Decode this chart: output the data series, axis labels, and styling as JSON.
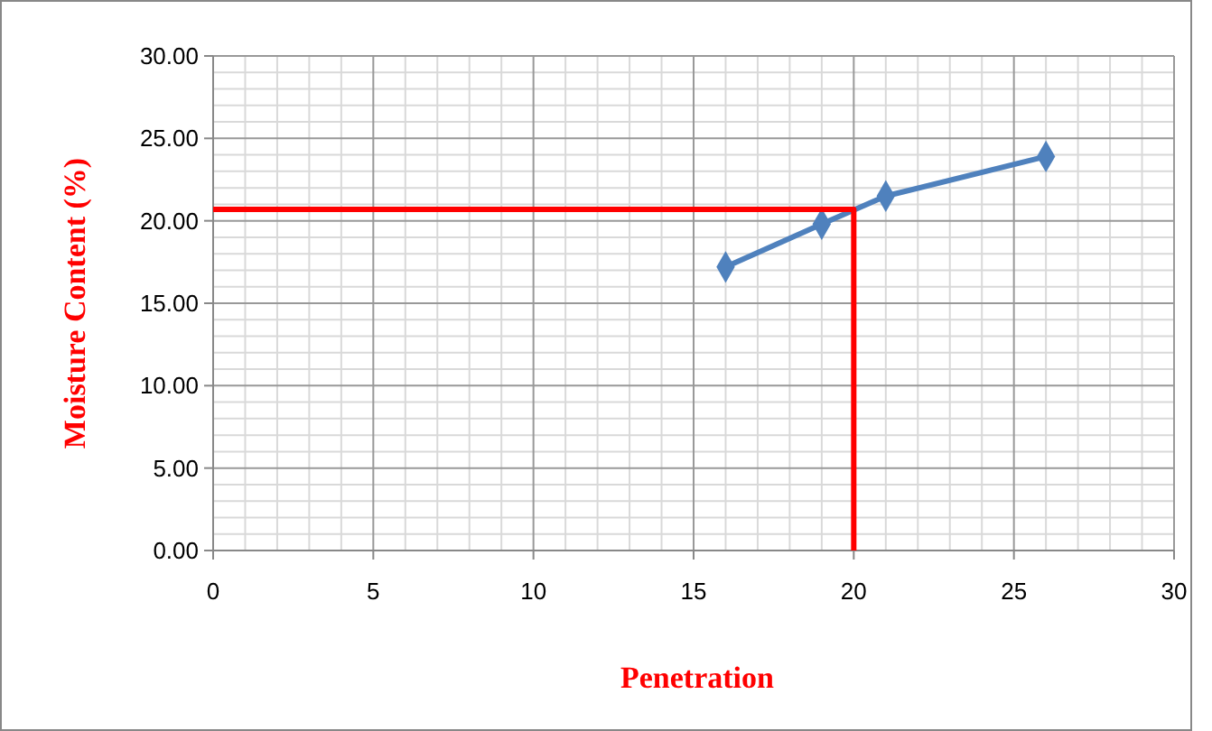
{
  "chart_data": {
    "type": "line",
    "xlabel": "Penetration",
    "ylabel": "Moisture Content (%)",
    "xlim": [
      0,
      30
    ],
    "xticks": [
      0,
      5,
      10,
      15,
      20,
      25,
      30
    ],
    "ylim": [
      0,
      30
    ],
    "yticks": [
      {
        "value": 0,
        "label": "0.00"
      },
      {
        "value": 5,
        "label": "5.00"
      },
      {
        "value": 10,
        "label": "10.00"
      },
      {
        "value": 15,
        "label": "15.00"
      },
      {
        "value": 20,
        "label": "20.00"
      },
      {
        "value": 25,
        "label": "25.00"
      },
      {
        "value": 30,
        "label": "30.00"
      }
    ],
    "grid": true,
    "series": [
      {
        "color": "#4f81bd",
        "x": [
          16,
          19,
          21,
          26
        ],
        "values": [
          17.2,
          19.8,
          21.5,
          23.9
        ],
        "marker": "diamond",
        "line_style": "solid"
      },
      {
        "color": "#ff0000",
        "x": [
          0,
          20,
          20
        ],
        "values": [
          20.7,
          20.7,
          0
        ],
        "marker": "none",
        "line_style": "solid"
      }
    ]
  }
}
